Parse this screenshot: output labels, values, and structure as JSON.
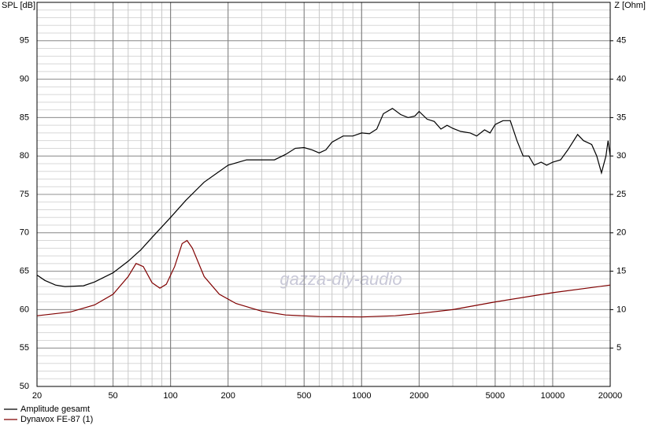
{
  "chart_data": {
    "type": "line",
    "y_label": "SPL [dB]",
    "y2_label": "Z [Ohm]",
    "watermark": "gazza-diy-audio",
    "xscale": "log",
    "xlim": [
      20,
      20000
    ],
    "xticks": [
      20,
      50,
      100,
      200,
      500,
      1000,
      2000,
      5000,
      10000,
      20000
    ],
    "ylim": [
      50,
      100
    ],
    "yticks": [
      50,
      55,
      60,
      65,
      70,
      75,
      80,
      85,
      90,
      95
    ],
    "y2lim": [
      0,
      50
    ],
    "y2ticks": [
      5,
      10,
      15,
      20,
      25,
      30,
      35,
      40,
      45
    ],
    "grid": true,
    "series": [
      {
        "name": "Amplitude gesamt",
        "color": "#000000",
        "x": [
          20,
          22,
          25,
          28,
          35,
          40,
          50,
          60,
          70,
          80,
          100,
          120,
          150,
          180,
          200,
          250,
          300,
          350,
          400,
          450,
          500,
          550,
          600,
          650,
          700,
          800,
          900,
          1000,
          1100,
          1200,
          1300,
          1450,
          1600,
          1750,
          1900,
          2000,
          2200,
          2400,
          2600,
          2800,
          3000,
          3300,
          3700,
          4000,
          4400,
          4700,
          5000,
          5500,
          6000,
          6500,
          7000,
          7500,
          8000,
          8700,
          9300,
          10000,
          11000,
          12000,
          13500,
          14500,
          16000,
          17000,
          18000,
          19000,
          19500,
          20000
        ],
        "values": [
          64.5,
          63.8,
          63.2,
          63.0,
          63.1,
          63.6,
          64.8,
          66.3,
          67.8,
          69.4,
          72.0,
          74.2,
          76.6,
          78.0,
          78.8,
          79.5,
          79.5,
          79.5,
          80.2,
          81.0,
          81.1,
          80.8,
          80.4,
          80.8,
          81.8,
          82.6,
          82.6,
          83.0,
          82.9,
          83.5,
          85.5,
          86.2,
          85.4,
          85.0,
          85.2,
          85.8,
          84.8,
          84.5,
          83.5,
          84.0,
          83.6,
          83.2,
          83.0,
          82.6,
          83.4,
          83.0,
          84.1,
          84.6,
          84.6,
          82.0,
          80.0,
          80.0,
          78.8,
          79.2,
          78.8,
          79.2,
          79.5,
          80.8,
          82.8,
          82.0,
          81.5,
          80.0,
          77.8,
          80.0,
          82.0,
          80.0
        ]
      },
      {
        "name": "Dynavox FE-87 (1)",
        "color": "#800000",
        "axis": "y2",
        "x": [
          20,
          30,
          40,
          50,
          60,
          66,
          72,
          80,
          88,
          95,
          105,
          115,
          122,
          130,
          150,
          180,
          220,
          300,
          400,
          600,
          1000,
          1500,
          2000,
          3000,
          5000,
          10000,
          20000
        ],
        "values": [
          9.2,
          9.7,
          10.6,
          12.0,
          14.3,
          16.0,
          15.6,
          13.5,
          12.8,
          13.3,
          15.6,
          18.6,
          19.0,
          18.0,
          14.3,
          12.0,
          10.8,
          9.8,
          9.3,
          9.1,
          9.05,
          9.2,
          9.5,
          10.0,
          11.0,
          12.2,
          13.2
        ]
      }
    ]
  }
}
